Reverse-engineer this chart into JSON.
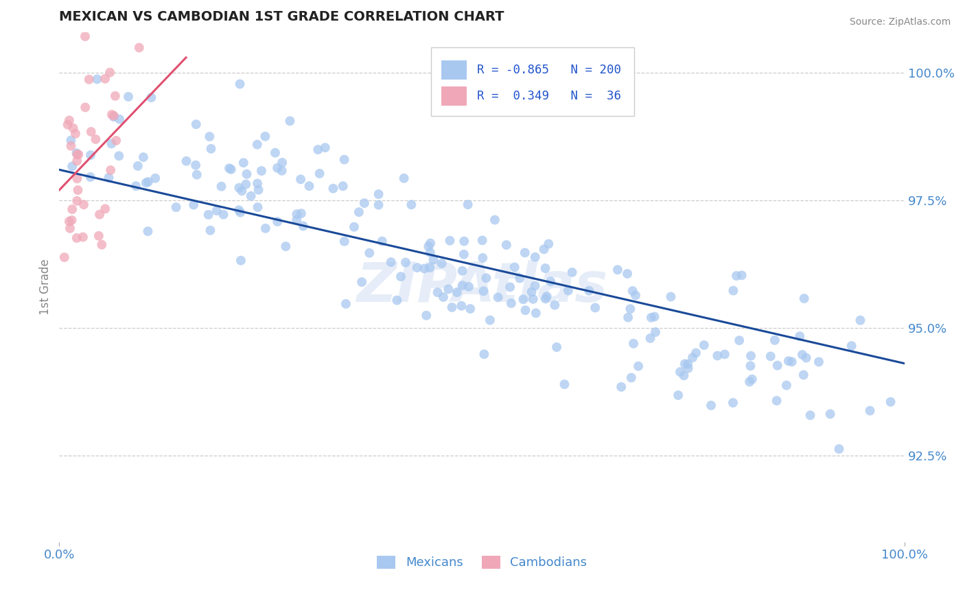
{
  "title": "MEXICAN VS CAMBODIAN 1ST GRADE CORRELATION CHART",
  "source_text": "Source: ZipAtlas.com",
  "ylabel": "1st Grade",
  "x_min": 0.0,
  "x_max": 1.0,
  "y_min": 0.908,
  "y_max": 1.008,
  "y_ticks": [
    0.925,
    0.95,
    0.975,
    1.0
  ],
  "y_tick_labels": [
    "92.5%",
    "95.0%",
    "97.5%",
    "100.0%"
  ],
  "mexican_R": -0.865,
  "mexican_N": 200,
  "cambodian_R": 0.349,
  "cambodian_N": 36,
  "dot_color_mexican": "#a8c8f0",
  "dot_color_cambodian": "#f0a8b8",
  "line_color_mexican": "#1a4a99",
  "line_color_cambodian": "#e05070",
  "background_color": "#ffffff",
  "grid_color": "#cccccc",
  "title_color": "#222222",
  "axis_label_color": "#888888",
  "tick_label_color": "#4488cc",
  "legend_color": "#2255cc",
  "watermark_text": "ZIPAtlas",
  "watermark_color": "#c8d8f0",
  "watermark_alpha": 0.45,
  "mex_line_x0": 0.0,
  "mex_line_y0": 0.981,
  "mex_line_x1": 1.0,
  "mex_line_y1": 0.943,
  "cam_line_x0": 0.0,
  "cam_line_y0": 0.977,
  "cam_line_x1": 0.15,
  "cam_line_y1": 1.003
}
